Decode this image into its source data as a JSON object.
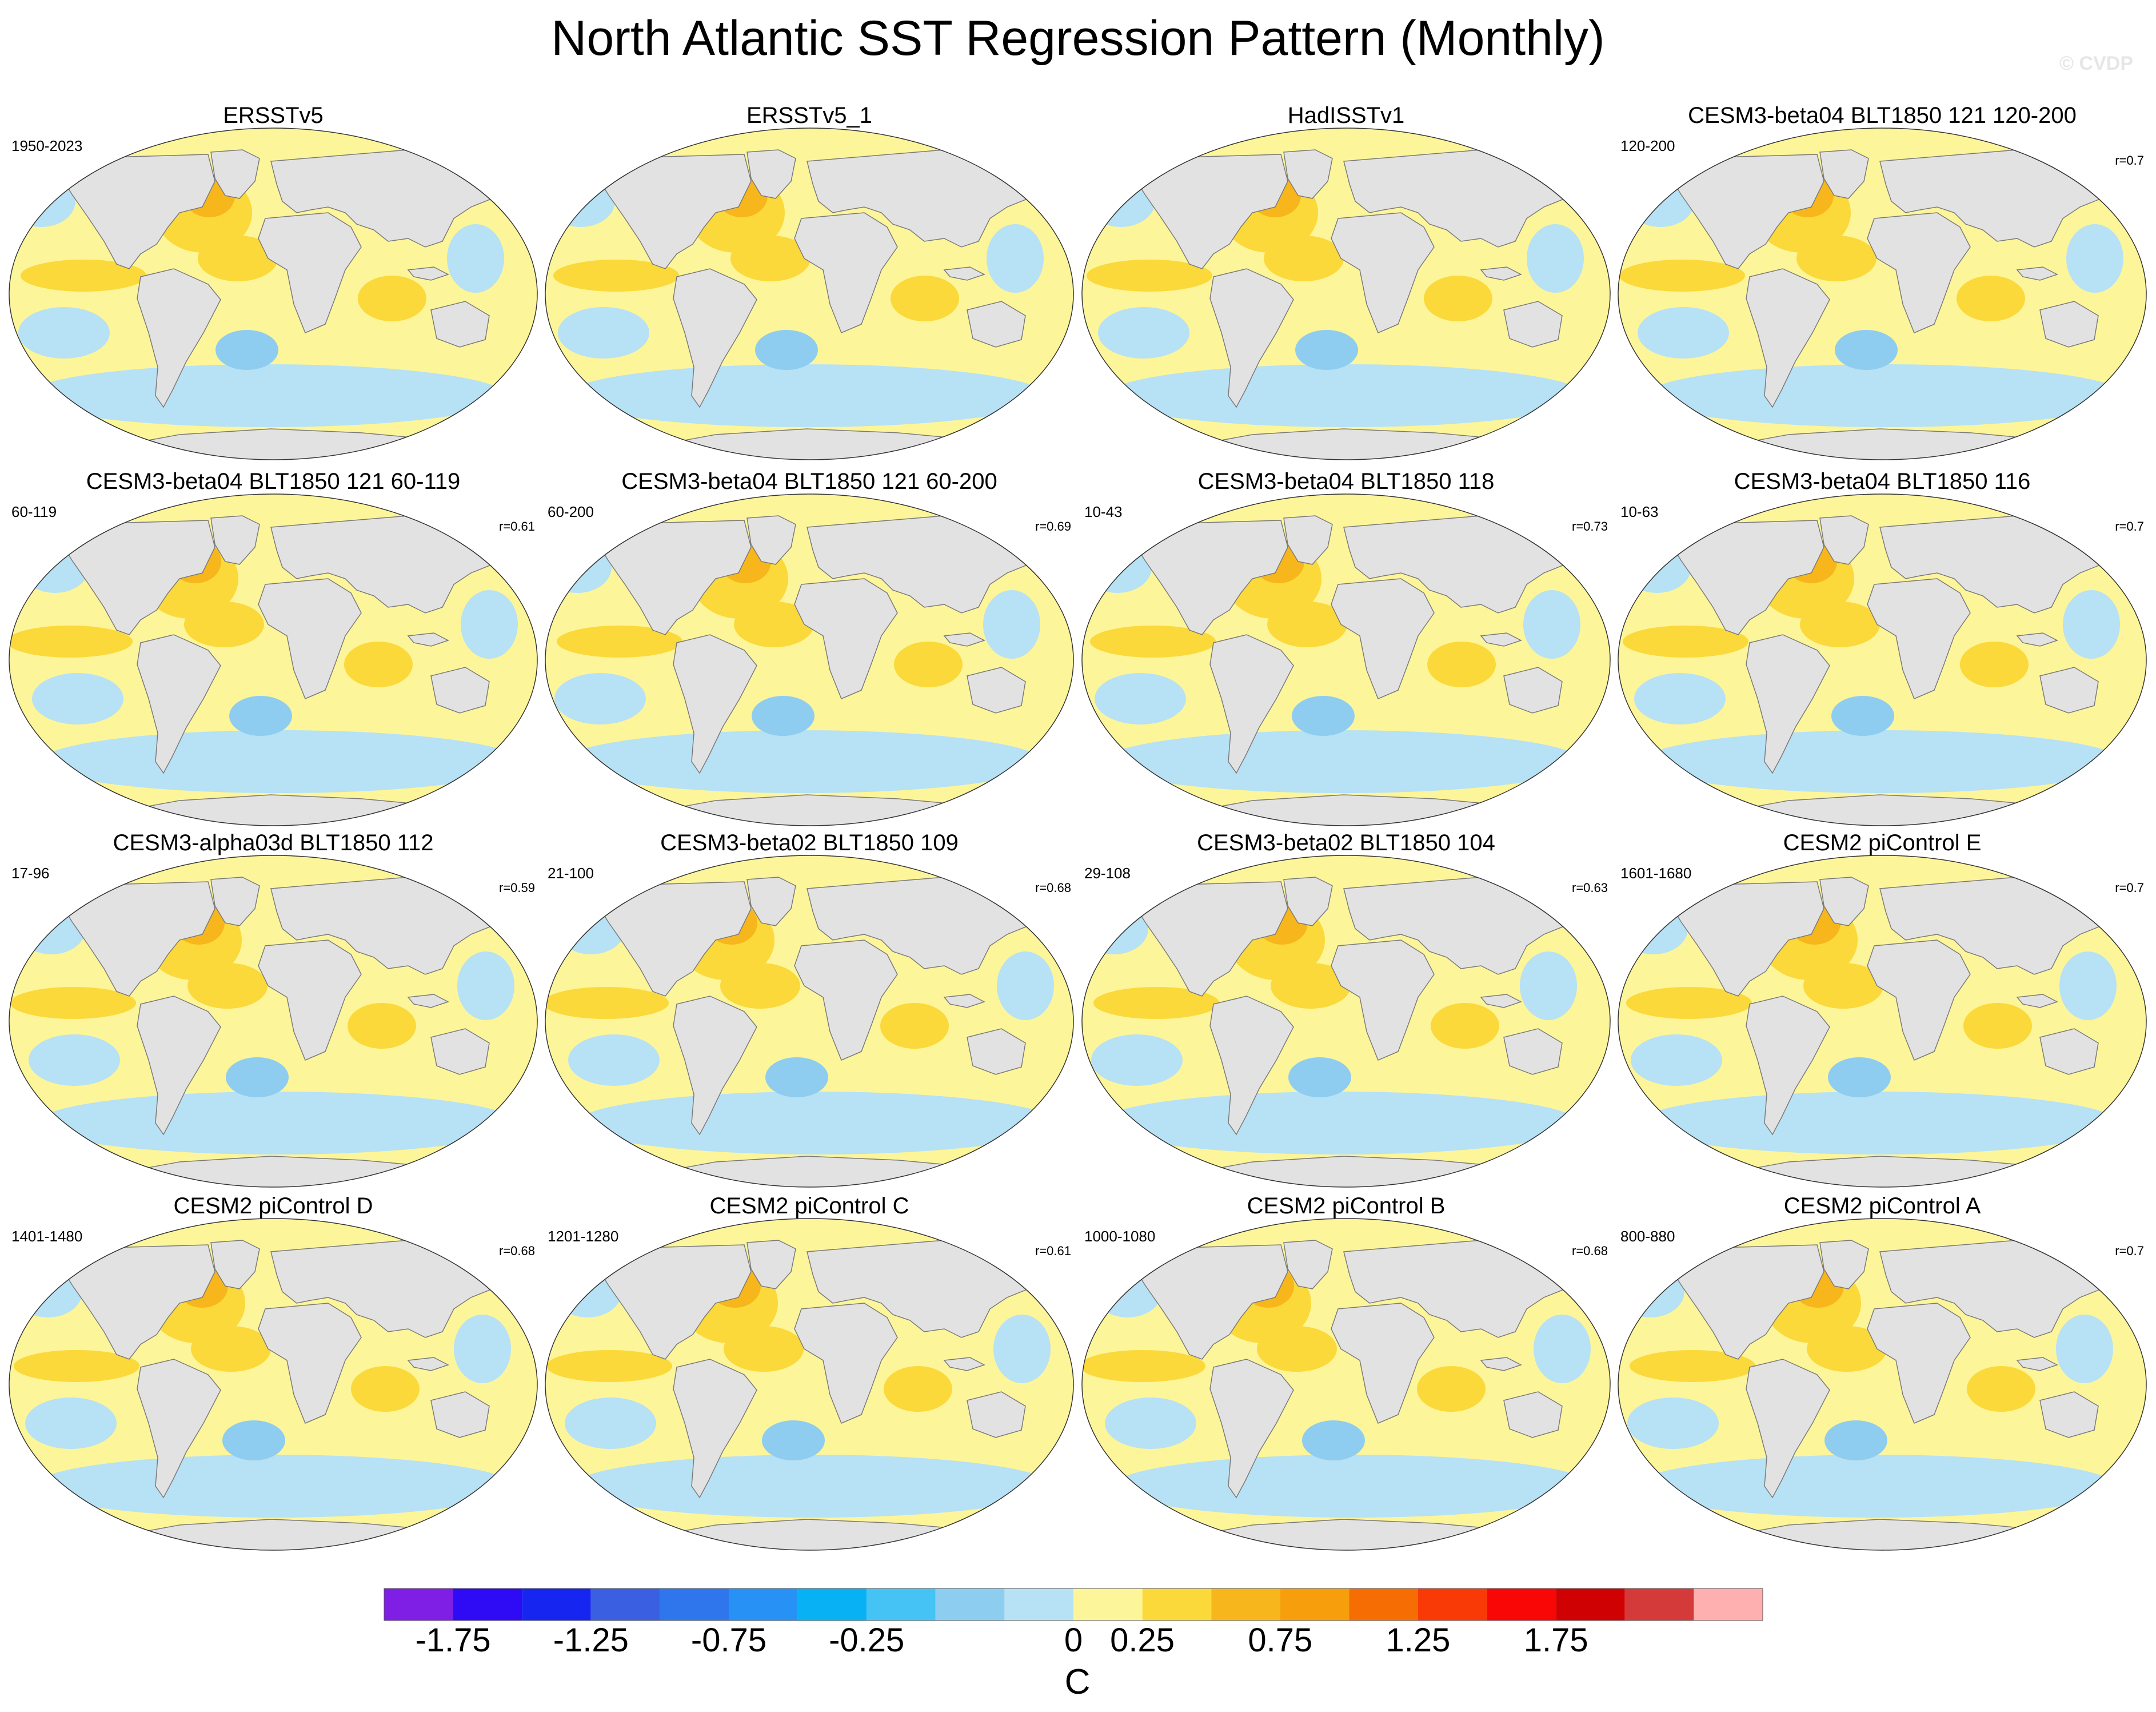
{
  "title": "North Atlantic SST Regression Pattern (Monthly)",
  "copyright": "© CVDP",
  "colors": {
    "land": "#e2e2e2",
    "coast": "#7a7a7a",
    "ocean_neutral": "#fdf59a",
    "ocean_warm1": "#fbd93a",
    "ocean_warm2": "#f6b61c",
    "ocean_cool1": "#b7e1f4",
    "ocean_cool2": "#8ecdf0"
  },
  "panels": [
    {
      "title": "ERSSTv5",
      "period": "1950-2023",
      "r": ""
    },
    {
      "title": "ERSSTv5_1",
      "period": "",
      "r": ""
    },
    {
      "title": "HadISSTv1",
      "period": "",
      "r": ""
    },
    {
      "title": "CESM3-beta04 BLT1850 121 120-200",
      "period": "120-200",
      "r": "r=0.7"
    },
    {
      "title": "CESM3-beta04 BLT1850 121 60-119",
      "period": "60-119",
      "r": "r=0.61"
    },
    {
      "title": "CESM3-beta04 BLT1850 121 60-200",
      "period": "60-200",
      "r": "r=0.69"
    },
    {
      "title": "CESM3-beta04 BLT1850 118",
      "period": "10-43",
      "r": "r=0.73"
    },
    {
      "title": "CESM3-beta04 BLT1850 116",
      "period": "10-63",
      "r": "r=0.7"
    },
    {
      "title": "CESM3-alpha03d BLT1850 112",
      "period": "17-96",
      "r": "r=0.59"
    },
    {
      "title": "CESM3-beta02 BLT1850 109",
      "period": "21-100",
      "r": "r=0.68"
    },
    {
      "title": "CESM3-beta02 BLT1850 104",
      "period": "29-108",
      "r": "r=0.63"
    },
    {
      "title": "CESM2 piControl E",
      "period": "1601-1680",
      "r": "r=0.7"
    },
    {
      "title": "CESM2 piControl D",
      "period": "1401-1480",
      "r": "r=0.68"
    },
    {
      "title": "CESM2 piControl C",
      "period": "1201-1280",
      "r": "r=0.61"
    },
    {
      "title": "CESM2 piControl B",
      "period": "1000-1080",
      "r": "r=0.68"
    },
    {
      "title": "CESM2 piControl A",
      "period": "800-880",
      "r": "r=0.7"
    }
  ],
  "chart_data": {
    "type": "heatmap",
    "title": "North Atlantic SST Regression Pattern (Monthly)",
    "projection": "Robinson (global)",
    "layout": "4 x 4 panel grid",
    "colorbar": {
      "unit_label": "C",
      "bins": 20,
      "colors": [
        "#7f1fe6",
        "#2f0bf5",
        "#1725f0",
        "#3a5fe0",
        "#2f76ec",
        "#2891f5",
        "#07b1f3",
        "#45c3f4",
        "#8ccdf0",
        "#b7e1f4",
        "#fdf59a",
        "#fbd93a",
        "#f6b61c",
        "#f69e0c",
        "#f66d03",
        "#fa3a06",
        "#f90606",
        "#cf0102",
        "#d43a3a",
        "#feb0b0"
      ],
      "tick_labels": [
        "-1.75",
        "-1.25",
        "-0.75",
        "-0.25",
        "0",
        "0.25",
        "0.75",
        "1.25",
        "1.75"
      ],
      "tick_bin_edges": [
        1,
        3,
        5,
        7,
        10,
        11,
        13,
        15,
        17
      ]
    }
  }
}
